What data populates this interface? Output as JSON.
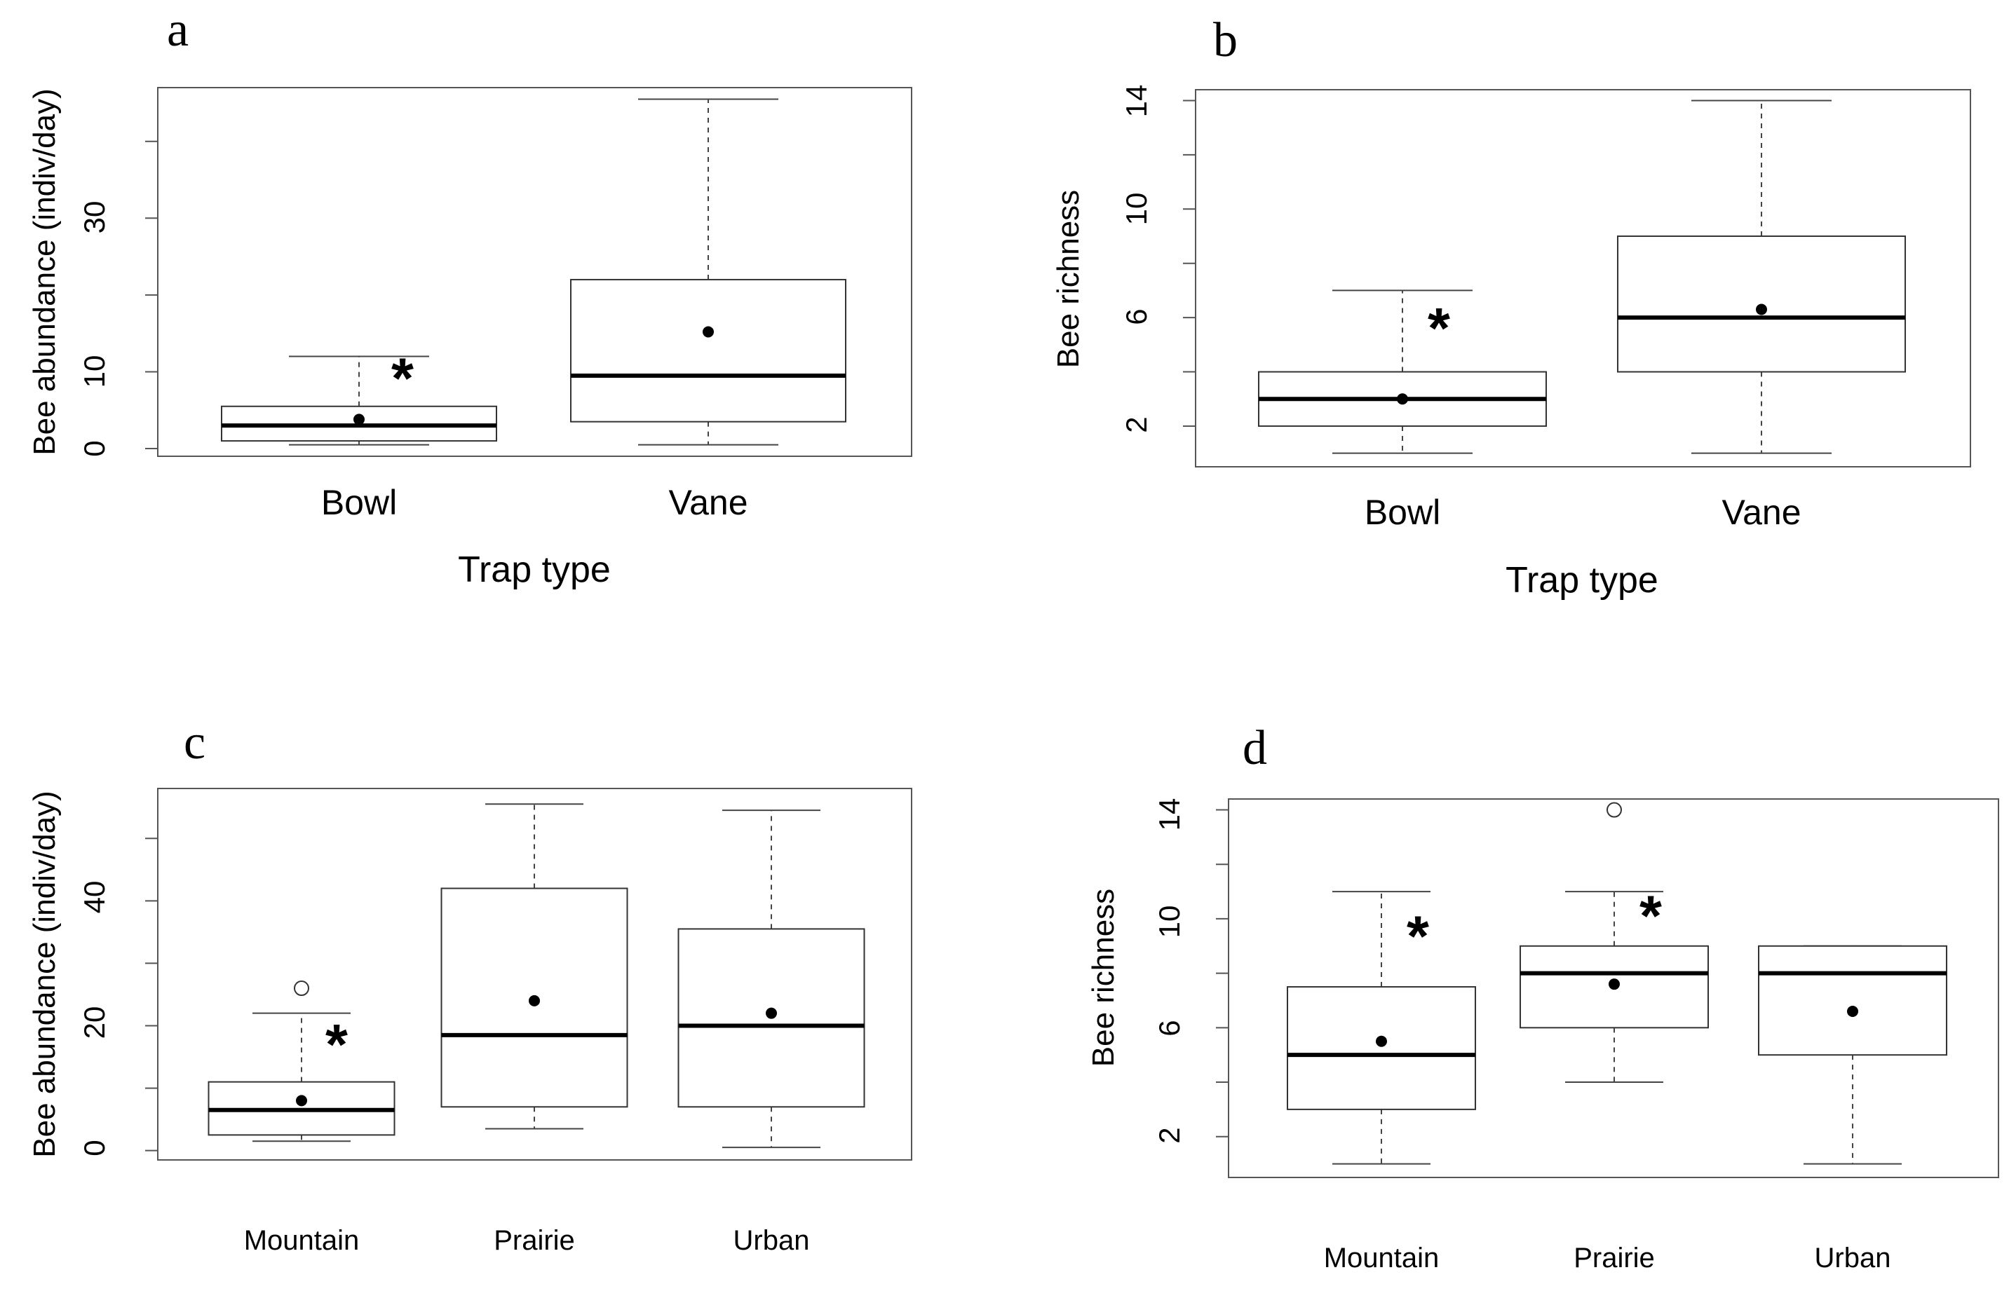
{
  "chart_data": [
    {
      "panel": "a",
      "type": "boxplot",
      "xlabel": "Trap type",
      "ylabel": "Bee abundance (indiv/day)",
      "ylim": [
        -1,
        47
      ],
      "yticks": [
        0,
        10,
        30
      ],
      "hidden_ticks": [
        20,
        40
      ],
      "categories": [
        "Bowl",
        "Vane"
      ],
      "boxes": [
        {
          "category": "Bowl",
          "whisker_low": 0.5,
          "q1": 1,
          "median": 3,
          "q3": 5.5,
          "whisker_high": 12,
          "mean": 3.8,
          "outliers": [],
          "significant": true
        },
        {
          "category": "Vane",
          "whisker_low": 0.5,
          "q1": 3.5,
          "median": 9.5,
          "q3": 22,
          "whisker_high": 45.5,
          "mean": 15.2,
          "outliers": [],
          "significant": false
        }
      ],
      "asterisk": "*"
    },
    {
      "panel": "b",
      "type": "boxplot",
      "xlabel": "Trap type",
      "ylabel": "Bee richness",
      "ylim": [
        0.5,
        14.4
      ],
      "yticks": [
        2,
        6,
        10,
        14
      ],
      "hidden_ticks": [
        4,
        8,
        12
      ],
      "categories": [
        "Bowl",
        "Vane"
      ],
      "boxes": [
        {
          "category": "Bowl",
          "whisker_low": 1,
          "q1": 2,
          "median": 3,
          "q3": 4,
          "whisker_high": 7,
          "mean": 3,
          "outliers": [],
          "significant": true
        },
        {
          "category": "Vane",
          "whisker_low": 1,
          "q1": 4,
          "median": 6,
          "q3": 9,
          "whisker_high": 14,
          "mean": 6.3,
          "outliers": [],
          "significant": false
        }
      ],
      "asterisk": "*"
    },
    {
      "panel": "c",
      "type": "boxplot",
      "xlabel": "",
      "ylabel": "Bee abundance (indiv/day)",
      "ylim": [
        -1.5,
        58
      ],
      "yticks": [
        0,
        20,
        40
      ],
      "hidden_ticks": [
        10,
        30,
        50
      ],
      "categories": [
        "Mountain",
        "Prairie",
        "Urban"
      ],
      "boxes": [
        {
          "category": "Mountain",
          "whisker_low": 1.5,
          "q1": 2.5,
          "median": 6.5,
          "q3": 11,
          "whisker_high": 22,
          "mean": 8,
          "outliers": [
            26
          ],
          "significant": true
        },
        {
          "category": "Prairie",
          "whisker_low": 3.5,
          "q1": 7,
          "median": 18.5,
          "q3": 42,
          "whisker_high": 55.5,
          "mean": 24,
          "outliers": [],
          "significant": false
        },
        {
          "category": "Urban",
          "whisker_low": 0.5,
          "q1": 7,
          "median": 20,
          "q3": 35.5,
          "whisker_high": 54.5,
          "mean": 22,
          "outliers": [],
          "significant": false
        }
      ],
      "asterisk": "*"
    },
    {
      "panel": "d",
      "type": "boxplot",
      "xlabel": "",
      "ylabel": "Bee richness",
      "ylim": [
        0.5,
        14.4
      ],
      "yticks": [
        2,
        6,
        10,
        14
      ],
      "hidden_ticks": [
        4,
        8,
        12
      ],
      "categories": [
        "Mountain",
        "Prairie",
        "Urban"
      ],
      "boxes": [
        {
          "category": "Mountain",
          "whisker_low": 1,
          "q1": 3,
          "median": 5,
          "q3": 7.5,
          "whisker_high": 11,
          "mean": 5.5,
          "outliers": [],
          "significant": true
        },
        {
          "category": "Prairie",
          "whisker_low": 4,
          "q1": 6,
          "median": 8,
          "q3": 9,
          "whisker_high": 11,
          "mean": 7.6,
          "outliers": [
            14
          ],
          "significant": true
        },
        {
          "category": "Urban",
          "whisker_low": 1,
          "q1": 5,
          "median": 8,
          "q3": 9,
          "whisker_high": 9,
          "mean": 6.6,
          "outliers": [],
          "significant": false
        }
      ],
      "asterisk": "*"
    }
  ]
}
